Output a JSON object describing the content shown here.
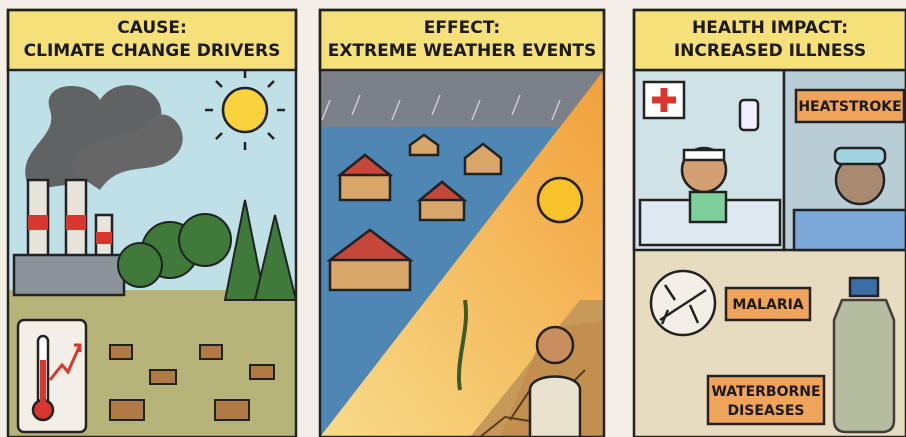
{
  "panels": [
    {
      "title": [
        "CAUSE:",
        "CLIMATE CHANGE DRIVERS"
      ]
    },
    {
      "title": [
        "EFFECT:",
        "EXTREME WEATHER EVENTS"
      ]
    },
    {
      "title": [
        "HEALTH IMPACT:",
        "INCREASED ILLNESS"
      ],
      "labels": [
        "HEATSTROKE",
        "MALARIA",
        [
          "WATERBORNE",
          "DISEASES"
        ]
      ]
    }
  ]
}
